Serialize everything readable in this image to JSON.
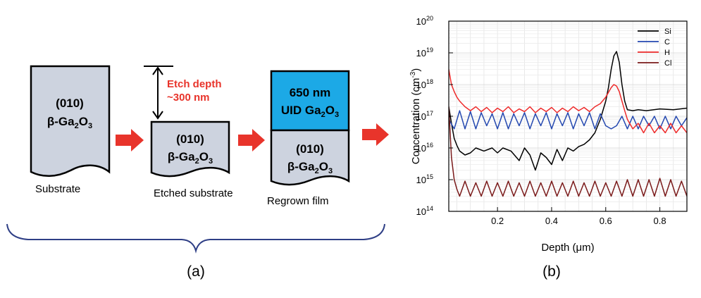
{
  "panel_a": {
    "label": "(a)",
    "substrate": {
      "line1": "(010)",
      "line2": "β-Ga",
      "sub1": "2",
      "mid": "O",
      "sub2": "3",
      "caption": "Substrate"
    },
    "etched": {
      "line1": "(010)",
      "line2": "β-Ga",
      "sub1": "2",
      "mid": "O",
      "sub2": "3",
      "caption": "Etched substrate",
      "etch_line1": "Etch depth",
      "etch_line2": "~300 nm"
    },
    "regrown": {
      "top_line1": "650 nm",
      "top_line2": "UID Ga",
      "top_sub1": "2",
      "top_mid": "O",
      "top_sub2": "3",
      "line1": "(010)",
      "line2": "β-Ga",
      "sub1": "2",
      "mid": "O",
      "sub2": "3",
      "caption": "Regrown film"
    },
    "colors": {
      "block": "#cdd3df",
      "film": "#1ca9e6",
      "arrow": "#e8342b",
      "brace": "#2f3f86"
    }
  },
  "panel_b": {
    "label": "(b)"
  },
  "chart_data": {
    "type": "line",
    "xlabel_main": "Depth (",
    "xlabel_mu": "μ",
    "xlabel_end": "m)",
    "ylabel_main": "Concentration (cm",
    "ylabel_sup": "-3",
    "ylabel_end": ")",
    "xlim": [
      0.02,
      0.9
    ],
    "ylim": [
      100000000000000.0,
      1e+20
    ],
    "yscale": "log",
    "x_ticks": [
      "0.2",
      "0.4",
      "0.6",
      "0.8"
    ],
    "x_tick_values": [
      0.2,
      0.4,
      0.6,
      0.8
    ],
    "y_tick_base": "10",
    "y_tick_exps": [
      "14",
      "15",
      "16",
      "17",
      "18",
      "19",
      "20"
    ],
    "grid": true,
    "legend": "top-right",
    "series": [
      {
        "name": "Si",
        "color": "#000000",
        "x": [
          0.02,
          0.03,
          0.04,
          0.05,
          0.06,
          0.08,
          0.1,
          0.12,
          0.15,
          0.18,
          0.2,
          0.22,
          0.25,
          0.28,
          0.3,
          0.32,
          0.34,
          0.36,
          0.38,
          0.4,
          0.42,
          0.44,
          0.46,
          0.48,
          0.5,
          0.52,
          0.54,
          0.56,
          0.58,
          0.6,
          0.61,
          0.62,
          0.63,
          0.64,
          0.65,
          0.66,
          0.67,
          0.68,
          0.7,
          0.72,
          0.75,
          0.8,
          0.85,
          0.9
        ],
        "y": [
          2e+17,
          6e+16,
          2e+16,
          1.2e+16,
          8000000000000000.0,
          6000000000000000.0,
          7000000000000000.0,
          1e+16,
          8000000000000000.0,
          1e+16,
          7000000000000000.0,
          1e+16,
          8000000000000000.0,
          4000000000000000.0,
          1e+16,
          6000000000000000.0,
          2000000000000000.0,
          7000000000000000.0,
          5000000000000000.0,
          3000000000000000.0,
          9000000000000000.0,
          4000000000000000.0,
          1e+16,
          8000000000000000.0,
          1.1e+16,
          1.3e+16,
          1.8e+16,
          3e+16,
          8e+16,
          3e+17,
          8e+17,
          3e+18,
          8e+18,
          1.1e+19,
          5e+18,
          1e+18,
          3e+17,
          1.6e+17,
          1.5e+17,
          1.6e+17,
          1.5e+17,
          1.7e+17,
          1.6e+17,
          1.8e+17
        ]
      },
      {
        "name": "C",
        "color": "#2448b0",
        "x": [
          0.02,
          0.04,
          0.06,
          0.08,
          0.1,
          0.12,
          0.14,
          0.16,
          0.18,
          0.2,
          0.22,
          0.24,
          0.26,
          0.28,
          0.3,
          0.32,
          0.34,
          0.36,
          0.38,
          0.4,
          0.42,
          0.44,
          0.46,
          0.48,
          0.5,
          0.52,
          0.54,
          0.56,
          0.58,
          0.6,
          0.62,
          0.64,
          0.66,
          0.68,
          0.7,
          0.72,
          0.74,
          0.76,
          0.78,
          0.8,
          0.82,
          0.84,
          0.86,
          0.88,
          0.9
        ],
        "y": [
          8e+16,
          4e+16,
          1.5e+17,
          4e+16,
          1.4e+17,
          4e+16,
          1.3e+17,
          5e+16,
          1.2e+17,
          4e+16,
          1.3e+17,
          4e+16,
          1.2e+17,
          5e+16,
          1.3e+17,
          4e+16,
          1.2e+17,
          5e+16,
          1.3e+17,
          4e+16,
          1.2e+17,
          5e+16,
          1.3e+17,
          4e+16,
          1.2e+17,
          5e+16,
          1.3e+17,
          4e+16,
          1.2e+17,
          5e+16,
          4e+16,
          5e+16,
          1e+17,
          4e+16,
          1e+17,
          4e+16,
          1e+17,
          5e+16,
          1e+17,
          4e+16,
          1e+17,
          4e+16,
          1e+17,
          5e+16,
          9e+16
        ]
      },
      {
        "name": "H",
        "color": "#ee2b2b",
        "x": [
          0.02,
          0.03,
          0.04,
          0.05,
          0.06,
          0.08,
          0.1,
          0.12,
          0.14,
          0.16,
          0.18,
          0.2,
          0.22,
          0.24,
          0.26,
          0.28,
          0.3,
          0.32,
          0.34,
          0.36,
          0.38,
          0.4,
          0.42,
          0.44,
          0.46,
          0.48,
          0.5,
          0.52,
          0.54,
          0.56,
          0.58,
          0.6,
          0.62,
          0.63,
          0.64,
          0.65,
          0.66,
          0.67,
          0.68,
          0.7,
          0.72,
          0.74,
          0.76,
          0.78,
          0.8,
          0.82,
          0.84,
          0.86,
          0.88,
          0.9
        ],
        "y": [
          3e+18,
          1e+18,
          6e+17,
          4e+17,
          3e+17,
          2e+17,
          1.5e+17,
          2e+17,
          1.4e+17,
          1.9e+17,
          1.3e+17,
          1.8e+17,
          1.4e+17,
          2e+17,
          1.3e+17,
          1.7e+17,
          1.4e+17,
          2e+17,
          1.3e+17,
          1.8e+17,
          1.4e+17,
          1.9e+17,
          1.3e+17,
          1.8e+17,
          1.4e+17,
          2e+17,
          1.5e+17,
          1.9e+17,
          1.4e+17,
          2e+17,
          2.5e+17,
          4e+17,
          8e+17,
          1e+18,
          9e+17,
          6e+17,
          3e+17,
          1.5e+17,
          8e+16,
          4e+16,
          6e+16,
          3e+16,
          6e+16,
          3e+16,
          5e+16,
          3e+16,
          6e+16,
          3e+16,
          5e+16,
          3e+16
        ]
      },
      {
        "name": "Cl",
        "color": "#7a1a1a",
        "x": [
          0.02,
          0.03,
          0.04,
          0.05,
          0.06,
          0.08,
          0.1,
          0.12,
          0.14,
          0.16,
          0.18,
          0.2,
          0.22,
          0.24,
          0.26,
          0.28,
          0.3,
          0.32,
          0.34,
          0.36,
          0.38,
          0.4,
          0.42,
          0.44,
          0.46,
          0.48,
          0.5,
          0.52,
          0.54,
          0.56,
          0.58,
          0.6,
          0.62,
          0.64,
          0.66,
          0.68,
          0.7,
          0.72,
          0.74,
          0.76,
          0.78,
          0.8,
          0.82,
          0.84,
          0.86,
          0.88,
          0.9
        ],
        "y": [
          2e+17,
          5000000000000000.0,
          1000000000000000.0,
          500000000000000.0,
          300000000000000.0,
          900000000000000.0,
          300000000000000.0,
          800000000000000.0,
          300000000000000.0,
          900000000000000.0,
          300000000000000.0,
          800000000000000.0,
          300000000000000.0,
          900000000000000.0,
          300000000000000.0,
          800000000000000.0,
          300000000000000.0,
          900000000000000.0,
          300000000000000.0,
          800000000000000.0,
          300000000000000.0,
          900000000000000.0,
          300000000000000.0,
          800000000000000.0,
          300000000000000.0,
          900000000000000.0,
          300000000000000.0,
          800000000000000.0,
          300000000000000.0,
          900000000000000.0,
          300000000000000.0,
          800000000000000.0,
          300000000000000.0,
          900000000000000.0,
          300000000000000.0,
          1000000000000000.0,
          300000000000000.0,
          1000000000000000.0,
          300000000000000.0,
          1000000000000000.0,
          300000000000000.0,
          1100000000000000.0,
          300000000000000.0,
          1000000000000000.0,
          300000000000000.0,
          900000000000000.0,
          300000000000000.0
        ]
      }
    ]
  }
}
